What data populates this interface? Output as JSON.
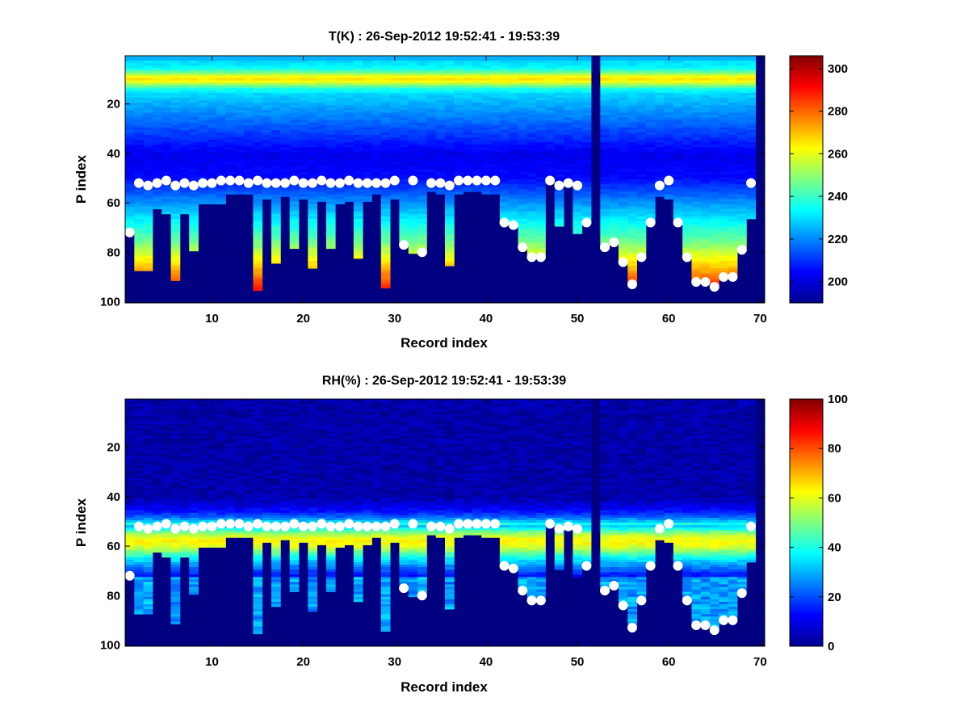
{
  "chart_data": [
    {
      "type": "heatmap",
      "title": "T(K) : 26-Sep-2012 19:52:41 - 19:53:39",
      "xlabel": "Record index",
      "ylabel": "P index",
      "xlim": [
        0.5,
        70.5
      ],
      "ylim": [
        0.5,
        100.5
      ],
      "y_reversed": true,
      "xticks": [
        "10",
        "20",
        "30",
        "40",
        "50",
        "60",
        "70"
      ],
      "yticks": [
        "20",
        "40",
        "60",
        "80",
        "100"
      ],
      "colormap": "jet",
      "clim": [
        190,
        306
      ],
      "colorbar_ticks": [
        "200",
        "220",
        "240",
        "260",
        "280",
        "300"
      ],
      "background_value": 190,
      "field": {
        "surface_value": 262,
        "tropopause_index": 10,
        "tropopause_value": 265,
        "stratosphere_value": 230,
        "upper_trop_value": 200,
        "near_surface_values": [
          270,
          280
        ]
      },
      "marker_label": "white dots",
      "records": [
        1,
        2,
        3,
        4,
        5,
        6,
        7,
        8,
        9,
        10,
        11,
        12,
        13,
        14,
        15,
        16,
        17,
        18,
        19,
        20,
        21,
        22,
        23,
        24,
        25,
        26,
        27,
        28,
        29,
        30,
        31,
        32,
        33,
        34,
        35,
        36,
        37,
        38,
        39,
        40,
        41,
        42,
        43,
        44,
        45,
        46,
        47,
        48,
        49,
        50,
        51,
        52,
        53,
        54,
        55,
        56,
        57,
        58,
        59,
        60,
        61,
        62,
        63,
        64,
        65,
        66,
        67,
        68,
        69,
        70
      ],
      "bottom_index": [
        72,
        87,
        87,
        62,
        64,
        91,
        64,
        79,
        60,
        60,
        60,
        56,
        56,
        56,
        95,
        58,
        84,
        57,
        78,
        58,
        86,
        59,
        78,
        60,
        59,
        82,
        59,
        56,
        94,
        58,
        77,
        80,
        80,
        55,
        56,
        85,
        56,
        55,
        55,
        56,
        56,
        68,
        69,
        78,
        82,
        82,
        51,
        69,
        53,
        72,
        68,
        0,
        78,
        76,
        84,
        92,
        82,
        68,
        57,
        58,
        68,
        82,
        91,
        91,
        93,
        90,
        90,
        79,
        66,
        0
      ],
      "dot_index": [
        72,
        52,
        53,
        52,
        51,
        53,
        52,
        53,
        52,
        52,
        51,
        51,
        51,
        52,
        51,
        52,
        52,
        52,
        51,
        52,
        52,
        51,
        52,
        52,
        51,
        52,
        52,
        52,
        52,
        51,
        77,
        51,
        80,
        52,
        52,
        53,
        51,
        51,
        51,
        51,
        51,
        68,
        69,
        78,
        82,
        82,
        51,
        53,
        52,
        53,
        68,
        null,
        78,
        76,
        84,
        93,
        82,
        68,
        53,
        51,
        68,
        82,
        92,
        92,
        94,
        90,
        90,
        79,
        52,
        null
      ]
    },
    {
      "type": "heatmap",
      "title": "RH(%) : 26-Sep-2012 19:52:41 - 19:53:39",
      "xlabel": "Record index",
      "ylabel": "P index",
      "xlim": [
        0.5,
        70.5
      ],
      "ylim": [
        0.5,
        100.5
      ],
      "y_reversed": true,
      "xticks": [
        "10",
        "20",
        "30",
        "40",
        "50",
        "60",
        "70"
      ],
      "yticks": [
        "20",
        "40",
        "60",
        "80",
        "100"
      ],
      "colormap": "jet",
      "clim": [
        0,
        100
      ],
      "colorbar_ticks": [
        "0",
        "20",
        "40",
        "60",
        "80",
        "100"
      ],
      "background_value": 0,
      "field": {
        "moist_layer_center": 58,
        "moist_layer_peak": 68,
        "boundary_value": 40,
        "dry_value": 5
      },
      "marker_label": "white dots",
      "records": [
        1,
        2,
        3,
        4,
        5,
        6,
        7,
        8,
        9,
        10,
        11,
        12,
        13,
        14,
        15,
        16,
        17,
        18,
        19,
        20,
        21,
        22,
        23,
        24,
        25,
        26,
        27,
        28,
        29,
        30,
        31,
        32,
        33,
        34,
        35,
        36,
        37,
        38,
        39,
        40,
        41,
        42,
        43,
        44,
        45,
        46,
        47,
        48,
        49,
        50,
        51,
        52,
        53,
        54,
        55,
        56,
        57,
        58,
        59,
        60,
        61,
        62,
        63,
        64,
        65,
        66,
        67,
        68,
        69,
        70
      ],
      "bottom_index": [
        72,
        87,
        87,
        62,
        64,
        91,
        64,
        79,
        60,
        60,
        60,
        56,
        56,
        56,
        95,
        58,
        84,
        57,
        78,
        58,
        86,
        59,
        78,
        60,
        59,
        82,
        59,
        56,
        94,
        58,
        77,
        80,
        80,
        55,
        56,
        85,
        56,
        55,
        55,
        56,
        56,
        68,
        69,
        78,
        82,
        82,
        51,
        69,
        53,
        72,
        68,
        0,
        78,
        76,
        84,
        92,
        82,
        68,
        57,
        58,
        68,
        82,
        91,
        91,
        93,
        90,
        90,
        79,
        66,
        0
      ],
      "dot_index": [
        72,
        52,
        53,
        52,
        51,
        53,
        52,
        53,
        52,
        52,
        51,
        51,
        51,
        52,
        51,
        52,
        52,
        52,
        51,
        52,
        52,
        51,
        52,
        52,
        51,
        52,
        52,
        52,
        52,
        51,
        77,
        51,
        80,
        52,
        52,
        53,
        51,
        51,
        51,
        51,
        51,
        68,
        69,
        78,
        82,
        82,
        51,
        53,
        52,
        53,
        68,
        null,
        78,
        76,
        84,
        93,
        82,
        68,
        53,
        51,
        68,
        82,
        92,
        92,
        94,
        90,
        90,
        79,
        52,
        null
      ]
    }
  ]
}
